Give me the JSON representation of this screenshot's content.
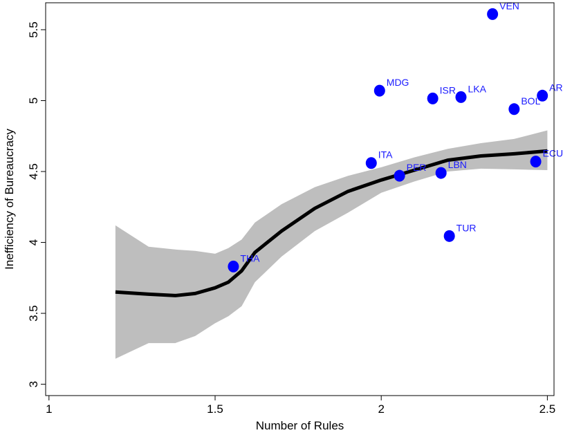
{
  "chart_data": {
    "type": "scatter",
    "xlabel": "Number of Rules",
    "ylabel": "Inefficiency of Bureaucracy",
    "xlim": [
      0.99,
      2.52
    ],
    "ylim": [
      2.92,
      5.69
    ],
    "x_ticks": [
      1,
      1.5,
      2,
      2.5
    ],
    "y_ticks": [
      3,
      3.5,
      4,
      4.5,
      5,
      5.5
    ],
    "x_tick_labels": [
      "1",
      "1.5",
      "2",
      "2.5"
    ],
    "y_tick_labels": [
      "3",
      "3.5",
      "4",
      "4.5",
      "5",
      "5.5"
    ],
    "grid": false,
    "point_color": "#0000ff",
    "label_color": "#1a1aff",
    "fit_color": "#000000",
    "band_color": "#bebebe",
    "points": [
      {
        "label": "VEN",
        "x": 2.335,
        "y": 5.61
      },
      {
        "label": "MDG",
        "x": 1.995,
        "y": 5.07
      },
      {
        "label": "ISR",
        "x": 2.155,
        "y": 5.015
      },
      {
        "label": "LKA",
        "x": 2.24,
        "y": 5.025
      },
      {
        "label": "ARG",
        "x": 2.485,
        "y": 5.035
      },
      {
        "label": "BOL",
        "x": 2.4,
        "y": 4.94
      },
      {
        "label": "ITA",
        "x": 1.97,
        "y": 4.56
      },
      {
        "label": "PER",
        "x": 2.055,
        "y": 4.47
      },
      {
        "label": "LBN",
        "x": 2.18,
        "y": 4.49
      },
      {
        "label": "ECU",
        "x": 2.465,
        "y": 4.57
      },
      {
        "label": "TUR",
        "x": 2.205,
        "y": 4.045
      },
      {
        "label": "THA",
        "x": 1.555,
        "y": 3.83
      }
    ],
    "fit": {
      "x": [
        1.2,
        1.3,
        1.38,
        1.44,
        1.5,
        1.54,
        1.58,
        1.62,
        1.7,
        1.8,
        1.9,
        2.0,
        2.1,
        2.2,
        2.3,
        2.4,
        2.5
      ],
      "y": [
        3.65,
        3.635,
        3.625,
        3.64,
        3.68,
        3.72,
        3.8,
        3.93,
        4.08,
        4.24,
        4.36,
        4.44,
        4.51,
        4.58,
        4.61,
        4.625,
        4.645
      ],
      "upper": [
        4.12,
        3.97,
        3.95,
        3.94,
        3.92,
        3.96,
        4.02,
        4.14,
        4.27,
        4.39,
        4.47,
        4.53,
        4.6,
        4.66,
        4.7,
        4.73,
        4.79
      ],
      "lower": [
        3.18,
        3.29,
        3.29,
        3.34,
        3.43,
        3.48,
        3.55,
        3.72,
        3.9,
        4.08,
        4.21,
        4.35,
        4.43,
        4.5,
        4.52,
        4.515,
        4.51
      ]
    }
  }
}
